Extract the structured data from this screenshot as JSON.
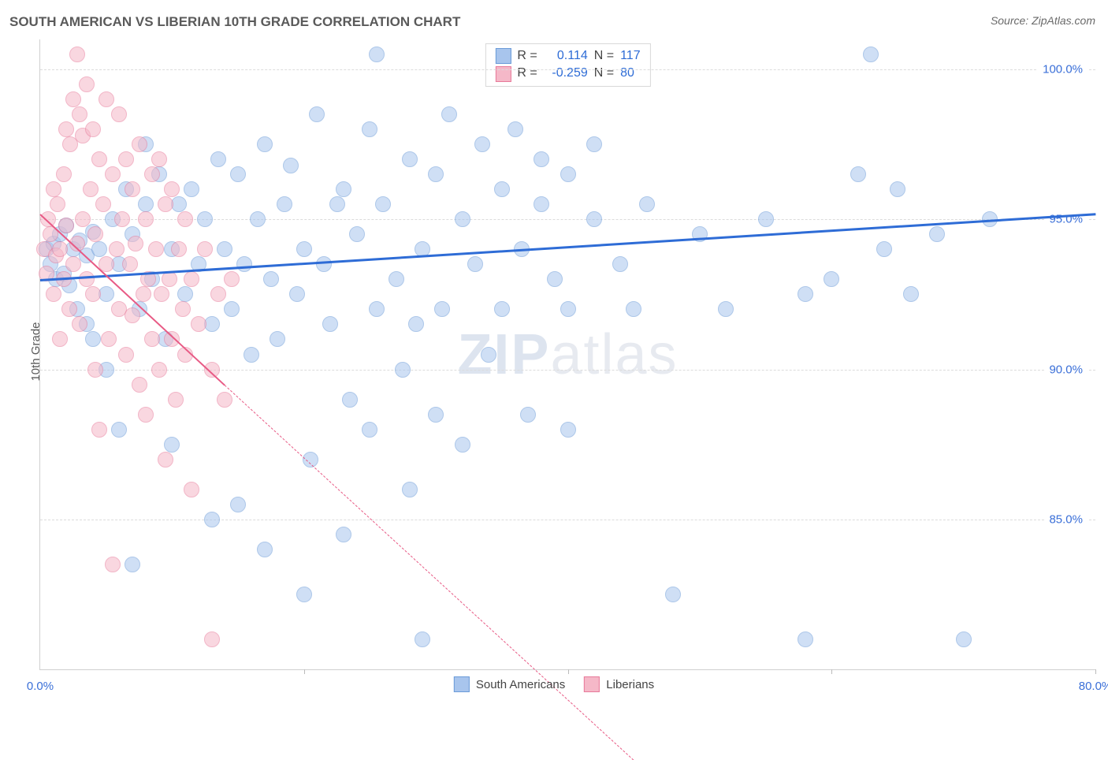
{
  "title": "SOUTH AMERICAN VS LIBERIAN 10TH GRADE CORRELATION CHART",
  "source": "Source: ZipAtlas.com",
  "yaxis_label": "10th Grade",
  "watermark_zip": "ZIP",
  "watermark_atlas": "atlas",
  "chart": {
    "type": "scatter",
    "xlim": [
      0,
      80
    ],
    "ylim": [
      80,
      101
    ],
    "xticks": [
      0,
      80
    ],
    "xtick_labels": [
      "0.0%",
      "80.0%"
    ],
    "xtick_marks": [
      20,
      40,
      60,
      80
    ],
    "yticks": [
      85,
      90,
      95,
      100
    ],
    "ytick_labels": [
      "85.0%",
      "90.0%",
      "95.0%",
      "100.0%"
    ],
    "grid_color": "#dcdcdc",
    "background_color": "#ffffff",
    "marker_radius": 9,
    "marker_opacity": 0.55,
    "series": [
      {
        "name": "South Americans",
        "color_fill": "#a8c5ed",
        "color_stroke": "#6b9bd8",
        "R": "0.114",
        "N": "117",
        "trend": {
          "x0": 0,
          "y0": 93.0,
          "x1": 80,
          "y1": 95.2,
          "color": "#2e6cd6",
          "width": 3,
          "dash": false,
          "extrapolate_dash": false
        },
        "points": [
          [
            0.5,
            94.0
          ],
          [
            0.8,
            93.5
          ],
          [
            1.0,
            94.2
          ],
          [
            1.2,
            93.0
          ],
          [
            1.5,
            94.5
          ],
          [
            1.8,
            93.2
          ],
          [
            2.0,
            94.8
          ],
          [
            2.2,
            92.8
          ],
          [
            2.5,
            94.0
          ],
          [
            2.8,
            92.0
          ],
          [
            3.0,
            94.3
          ],
          [
            3.5,
            93.8
          ],
          [
            3.5,
            91.5
          ],
          [
            4.0,
            94.6
          ],
          [
            4.0,
            91.0
          ],
          [
            4.5,
            94.0
          ],
          [
            5.0,
            92.5
          ],
          [
            5.0,
            90.0
          ],
          [
            5.5,
            95.0
          ],
          [
            6.0,
            93.5
          ],
          [
            6.0,
            88.0
          ],
          [
            6.5,
            96.0
          ],
          [
            7.0,
            94.5
          ],
          [
            7.0,
            83.5
          ],
          [
            7.5,
            92.0
          ],
          [
            8.0,
            95.5
          ],
          [
            8.0,
            97.5
          ],
          [
            8.5,
            93.0
          ],
          [
            9.0,
            96.5
          ],
          [
            9.5,
            91.0
          ],
          [
            10.0,
            94.0
          ],
          [
            10.0,
            87.5
          ],
          [
            10.5,
            95.5
          ],
          [
            11.0,
            92.5
          ],
          [
            11.5,
            96.0
          ],
          [
            12.0,
            93.5
          ],
          [
            12.5,
            95.0
          ],
          [
            13.0,
            91.5
          ],
          [
            13.0,
            85.0
          ],
          [
            13.5,
            97.0
          ],
          [
            14.0,
            94.0
          ],
          [
            14.5,
            92.0
          ],
          [
            15.0,
            96.5
          ],
          [
            15.0,
            85.5
          ],
          [
            15.5,
            93.5
          ],
          [
            16.0,
            90.5
          ],
          [
            16.5,
            95.0
          ],
          [
            17.0,
            97.5
          ],
          [
            17.0,
            84.0
          ],
          [
            17.5,
            93.0
          ],
          [
            18.0,
            91.0
          ],
          [
            18.5,
            95.5
          ],
          [
            19.0,
            96.8
          ],
          [
            19.5,
            92.5
          ],
          [
            20.0,
            94.0
          ],
          [
            20.0,
            82.5
          ],
          [
            20.5,
            87.0
          ],
          [
            21.0,
            98.5
          ],
          [
            21.5,
            93.5
          ],
          [
            22.0,
            91.5
          ],
          [
            22.5,
            95.5
          ],
          [
            23.0,
            96.0
          ],
          [
            23.0,
            84.5
          ],
          [
            23.5,
            89.0
          ],
          [
            24.0,
            94.5
          ],
          [
            25.0,
            98.0
          ],
          [
            25.0,
            88.0
          ],
          [
            25.5,
            92.0
          ],
          [
            25.5,
            100.5
          ],
          [
            26.0,
            95.5
          ],
          [
            27.0,
            93.0
          ],
          [
            27.5,
            90.0
          ],
          [
            28.0,
            97.0
          ],
          [
            28.0,
            86.0
          ],
          [
            28.5,
            91.5
          ],
          [
            29.0,
            94.0
          ],
          [
            29.0,
            81.0
          ],
          [
            30.0,
            96.5
          ],
          [
            30.0,
            88.5
          ],
          [
            30.5,
            92.0
          ],
          [
            31.0,
            98.5
          ],
          [
            32.0,
            95.0
          ],
          [
            32.0,
            87.5
          ],
          [
            33.0,
            93.5
          ],
          [
            33.5,
            97.5
          ],
          [
            34.0,
            90.5
          ],
          [
            35.0,
            96.0
          ],
          [
            35.0,
            92.0
          ],
          [
            36.0,
            98.0
          ],
          [
            36.5,
            94.0
          ],
          [
            37.0,
            88.5
          ],
          [
            38.0,
            95.5
          ],
          [
            38.0,
            97.0
          ],
          [
            39.0,
            93.0
          ],
          [
            40.0,
            96.5
          ],
          [
            40.0,
            92.0
          ],
          [
            40.0,
            88.0
          ],
          [
            42.0,
            95.0
          ],
          [
            42.0,
            97.5
          ],
          [
            44.0,
            93.5
          ],
          [
            45.0,
            92.0
          ],
          [
            46.0,
            95.5
          ],
          [
            48.0,
            82.5
          ],
          [
            50.0,
            94.5
          ],
          [
            52.0,
            92.0
          ],
          [
            55.0,
            95.0
          ],
          [
            58.0,
            92.5
          ],
          [
            60.0,
            93.0
          ],
          [
            58.0,
            81.0
          ],
          [
            62.0,
            96.5
          ],
          [
            63.0,
            100.5
          ],
          [
            64.0,
            94.0
          ],
          [
            65.0,
            96.0
          ],
          [
            66.0,
            92.5
          ],
          [
            68.0,
            94.5
          ],
          [
            70.0,
            81.0
          ],
          [
            72.0,
            95.0
          ]
        ]
      },
      {
        "name": "Liberians",
        "color_fill": "#f5b8c8",
        "color_stroke": "#e87a9a",
        "R": "-0.259",
        "N": "80",
        "trend": {
          "x0": 0,
          "y0": 95.2,
          "x1": 14,
          "y1": 89.5,
          "color": "#e85a85",
          "width": 2,
          "dash": false,
          "extrapolate_dash": true,
          "x2": 45,
          "y2": 77.0
        },
        "points": [
          [
            0.3,
            94.0
          ],
          [
            0.5,
            93.2
          ],
          [
            0.6,
            95.0
          ],
          [
            0.8,
            94.5
          ],
          [
            1.0,
            92.5
          ],
          [
            1.0,
            96.0
          ],
          [
            1.2,
            93.8
          ],
          [
            1.3,
            95.5
          ],
          [
            1.5,
            94.0
          ],
          [
            1.5,
            91.0
          ],
          [
            1.8,
            93.0
          ],
          [
            1.8,
            96.5
          ],
          [
            2.0,
            94.8
          ],
          [
            2.0,
            98.0
          ],
          [
            2.2,
            92.0
          ],
          [
            2.3,
            97.5
          ],
          [
            2.5,
            93.5
          ],
          [
            2.5,
            99.0
          ],
          [
            2.8,
            94.2
          ],
          [
            2.8,
            100.5
          ],
          [
            3.0,
            91.5
          ],
          [
            3.0,
            98.5
          ],
          [
            3.2,
            95.0
          ],
          [
            3.2,
            97.8
          ],
          [
            3.5,
            93.0
          ],
          [
            3.5,
            99.5
          ],
          [
            3.8,
            96.0
          ],
          [
            4.0,
            92.5
          ],
          [
            4.0,
            98.0
          ],
          [
            4.2,
            94.5
          ],
          [
            4.2,
            90.0
          ],
          [
            4.5,
            97.0
          ],
          [
            4.5,
            88.0
          ],
          [
            4.8,
            95.5
          ],
          [
            5.0,
            93.5
          ],
          [
            5.0,
            99.0
          ],
          [
            5.2,
            91.0
          ],
          [
            5.5,
            96.5
          ],
          [
            5.5,
            83.5
          ],
          [
            5.8,
            94.0
          ],
          [
            6.0,
            92.0
          ],
          [
            6.0,
            98.5
          ],
          [
            6.2,
            95.0
          ],
          [
            6.5,
            90.5
          ],
          [
            6.5,
            97.0
          ],
          [
            6.8,
            93.5
          ],
          [
            7.0,
            91.8
          ],
          [
            7.0,
            96.0
          ],
          [
            7.2,
            94.2
          ],
          [
            7.5,
            89.5
          ],
          [
            7.5,
            97.5
          ],
          [
            7.8,
            92.5
          ],
          [
            8.0,
            95.0
          ],
          [
            8.0,
            88.5
          ],
          [
            8.2,
            93.0
          ],
          [
            8.5,
            96.5
          ],
          [
            8.5,
            91.0
          ],
          [
            8.8,
            94.0
          ],
          [
            9.0,
            90.0
          ],
          [
            9.0,
            97.0
          ],
          [
            9.2,
            92.5
          ],
          [
            9.5,
            95.5
          ],
          [
            9.5,
            87.0
          ],
          [
            9.8,
            93.0
          ],
          [
            10.0,
            91.0
          ],
          [
            10.0,
            96.0
          ],
          [
            10.3,
            89.0
          ],
          [
            10.5,
            94.0
          ],
          [
            10.8,
            92.0
          ],
          [
            11.0,
            90.5
          ],
          [
            11.0,
            95.0
          ],
          [
            11.5,
            93.0
          ],
          [
            11.5,
            86.0
          ],
          [
            12.0,
            91.5
          ],
          [
            12.5,
            94.0
          ],
          [
            13.0,
            90.0
          ],
          [
            13.0,
            81.0
          ],
          [
            13.5,
            92.5
          ],
          [
            14.0,
            89.0
          ],
          [
            14.5,
            93.0
          ]
        ]
      }
    ]
  },
  "legend_top": {
    "r_label": "R =",
    "n_label": "N ="
  },
  "legend_bottom": [
    {
      "label": "South Americans",
      "fill": "#a8c5ed",
      "stroke": "#6b9bd8"
    },
    {
      "label": "Liberians",
      "fill": "#f5b8c8",
      "stroke": "#e87a9a"
    }
  ]
}
